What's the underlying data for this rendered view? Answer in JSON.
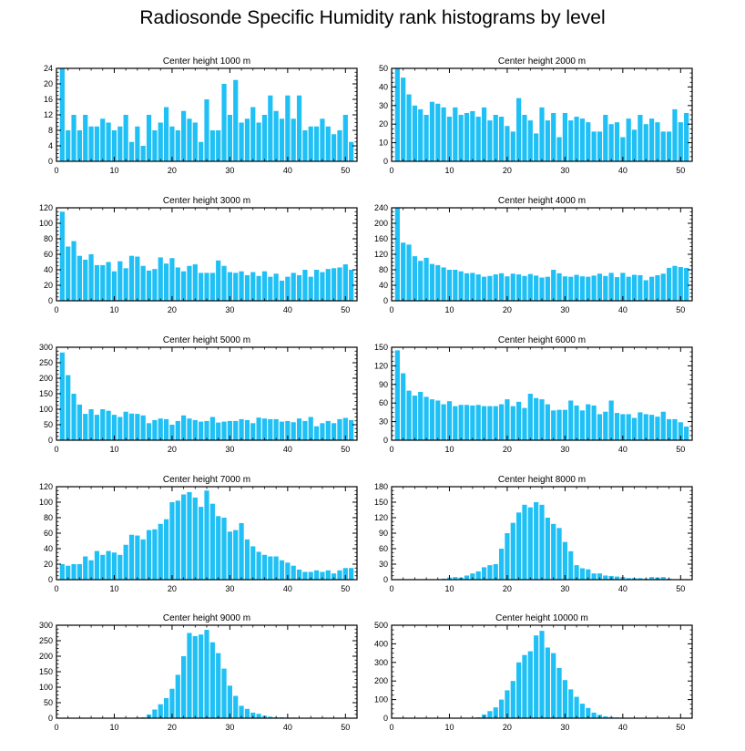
{
  "title": "Radiosonde Specific Humidity rank histograms by level",
  "colors": {
    "bar": "#1ec0f5",
    "axis": "#000000"
  },
  "chart_data": [
    {
      "type": "bar",
      "title": "Center height 1000 m",
      "xlim": [
        0,
        52
      ],
      "ylim": [
        0,
        24
      ],
      "xticks": [
        0,
        10,
        20,
        30,
        40,
        50
      ],
      "yticks": [
        0,
        4,
        8,
        12,
        16,
        20,
        24
      ],
      "x": [
        1,
        2,
        3,
        4,
        5,
        6,
        7,
        8,
        9,
        10,
        11,
        12,
        13,
        14,
        15,
        16,
        17,
        18,
        19,
        20,
        21,
        22,
        23,
        24,
        25,
        26,
        27,
        28,
        29,
        30,
        31,
        32,
        33,
        34,
        35,
        36,
        37,
        38,
        39,
        40,
        41,
        42,
        43,
        44,
        45,
        46,
        47,
        48,
        49,
        50,
        51
      ],
      "values": [
        24,
        8,
        12,
        8,
        12,
        9,
        9,
        11,
        10,
        8,
        9,
        12,
        5,
        9,
        4,
        12,
        8,
        10,
        14,
        9,
        8,
        13,
        11,
        10,
        5,
        16,
        8,
        8,
        20,
        12,
        21,
        10,
        11,
        14,
        10,
        12,
        17,
        13,
        11,
        17,
        11,
        17,
        8,
        9,
        9,
        11,
        9,
        7,
        8,
        12,
        5
      ]
    },
    {
      "type": "bar",
      "title": "Center height 2000 m",
      "xlim": [
        0,
        52
      ],
      "ylim": [
        0,
        50
      ],
      "xticks": [
        0,
        10,
        20,
        30,
        40,
        50
      ],
      "yticks": [
        0,
        10,
        20,
        30,
        40,
        50
      ],
      "x": [
        1,
        2,
        3,
        4,
        5,
        6,
        7,
        8,
        9,
        10,
        11,
        12,
        13,
        14,
        15,
        16,
        17,
        18,
        19,
        20,
        21,
        22,
        23,
        24,
        25,
        26,
        27,
        28,
        29,
        30,
        31,
        32,
        33,
        34,
        35,
        36,
        37,
        38,
        39,
        40,
        41,
        42,
        43,
        44,
        45,
        46,
        47,
        48,
        49,
        50,
        51
      ],
      "values": [
        50,
        45,
        36,
        30,
        28,
        25,
        32,
        31,
        29,
        24,
        29,
        25,
        26,
        27,
        24,
        29,
        22,
        25,
        24,
        19,
        16,
        34,
        25,
        22,
        15,
        29,
        22,
        26,
        13,
        26,
        22,
        24,
        23,
        21,
        16,
        16,
        25,
        20,
        21,
        13,
        23,
        17,
        25,
        20,
        23,
        21,
        16,
        16,
        28,
        21,
        26
      ]
    },
    {
      "type": "bar",
      "title": "Center height 3000 m",
      "xlim": [
        0,
        52
      ],
      "ylim": [
        0,
        120
      ],
      "xticks": [
        0,
        10,
        20,
        30,
        40,
        50
      ],
      "yticks": [
        0,
        20,
        40,
        60,
        80,
        100,
        120
      ],
      "x": [
        1,
        2,
        3,
        4,
        5,
        6,
        7,
        8,
        9,
        10,
        11,
        12,
        13,
        14,
        15,
        16,
        17,
        18,
        19,
        20,
        21,
        22,
        23,
        24,
        25,
        26,
        27,
        28,
        29,
        30,
        31,
        32,
        33,
        34,
        35,
        36,
        37,
        38,
        39,
        40,
        41,
        42,
        43,
        44,
        45,
        46,
        47,
        48,
        49,
        50,
        51
      ],
      "values": [
        115,
        70,
        77,
        58,
        53,
        60,
        46,
        46,
        50,
        38,
        51,
        42,
        58,
        57,
        45,
        39,
        41,
        56,
        48,
        55,
        43,
        38,
        45,
        47,
        36,
        36,
        36,
        52,
        45,
        37,
        36,
        38,
        33,
        37,
        32,
        38,
        31,
        35,
        26,
        31,
        36,
        33,
        40,
        31,
        40,
        37,
        41,
        42,
        43,
        47,
        40
      ]
    },
    {
      "type": "bar",
      "title": "Center height 4000 m",
      "xlim": [
        0,
        52
      ],
      "ylim": [
        0,
        240
      ],
      "xticks": [
        0,
        10,
        20,
        30,
        40,
        50
      ],
      "yticks": [
        0,
        40,
        80,
        120,
        160,
        200,
        240
      ],
      "x": [
        1,
        2,
        3,
        4,
        5,
        6,
        7,
        8,
        9,
        10,
        11,
        12,
        13,
        14,
        15,
        16,
        17,
        18,
        19,
        20,
        21,
        22,
        23,
        24,
        25,
        26,
        27,
        28,
        29,
        30,
        31,
        32,
        33,
        34,
        35,
        36,
        37,
        38,
        39,
        40,
        41,
        42,
        43,
        44,
        45,
        46,
        47,
        48,
        49,
        50,
        51
      ],
      "values": [
        243,
        150,
        145,
        115,
        103,
        111,
        95,
        92,
        86,
        80,
        80,
        76,
        71,
        72,
        68,
        62,
        64,
        68,
        71,
        63,
        70,
        68,
        64,
        69,
        65,
        60,
        62,
        80,
        71,
        63,
        62,
        67,
        63,
        62,
        65,
        70,
        64,
        72,
        61,
        72,
        62,
        67,
        66,
        53,
        62,
        66,
        70,
        85,
        90,
        87,
        85
      ]
    },
    {
      "type": "bar",
      "title": "Center height 5000 m",
      "xlim": [
        0,
        52
      ],
      "ylim": [
        0,
        300
      ],
      "xticks": [
        0,
        10,
        20,
        30,
        40,
        50
      ],
      "yticks": [
        0,
        50,
        100,
        150,
        200,
        250,
        300
      ],
      "x": [
        1,
        2,
        3,
        4,
        5,
        6,
        7,
        8,
        9,
        10,
        11,
        12,
        13,
        14,
        15,
        16,
        17,
        18,
        19,
        20,
        21,
        22,
        23,
        24,
        25,
        26,
        27,
        28,
        29,
        30,
        31,
        32,
        33,
        34,
        35,
        36,
        37,
        38,
        39,
        40,
        41,
        42,
        43,
        44,
        45,
        46,
        47,
        48,
        49,
        50,
        51
      ],
      "values": [
        283,
        210,
        150,
        115,
        85,
        100,
        82,
        100,
        95,
        82,
        75,
        92,
        86,
        85,
        80,
        55,
        65,
        70,
        68,
        50,
        62,
        80,
        70,
        65,
        60,
        62,
        75,
        57,
        60,
        62,
        62,
        68,
        65,
        55,
        73,
        70,
        68,
        68,
        60,
        62,
        58,
        70,
        62,
        75,
        45,
        55,
        62,
        55,
        68,
        72,
        65
      ]
    },
    {
      "type": "bar",
      "title": "Center height 6000 m",
      "xlim": [
        0,
        52
      ],
      "ylim": [
        0,
        150
      ],
      "xticks": [
        0,
        10,
        20,
        30,
        40,
        50
      ],
      "yticks": [
        0,
        30,
        60,
        90,
        120,
        150
      ],
      "x": [
        1,
        2,
        3,
        4,
        5,
        6,
        7,
        8,
        9,
        10,
        11,
        12,
        13,
        14,
        15,
        16,
        17,
        18,
        19,
        20,
        21,
        22,
        23,
        24,
        25,
        26,
        27,
        28,
        29,
        30,
        31,
        32,
        33,
        34,
        35,
        36,
        37,
        38,
        39,
        40,
        41,
        42,
        43,
        44,
        45,
        46,
        47,
        48,
        49,
        50,
        51
      ],
      "values": [
        145,
        108,
        80,
        72,
        78,
        70,
        66,
        64,
        58,
        63,
        55,
        57,
        57,
        56,
        57,
        55,
        55,
        55,
        58,
        66,
        55,
        62,
        52,
        75,
        68,
        66,
        58,
        48,
        49,
        49,
        64,
        56,
        48,
        58,
        56,
        42,
        46,
        64,
        44,
        42,
        42,
        36,
        45,
        42,
        41,
        38,
        46,
        34,
        34,
        29,
        22
      ]
    },
    {
      "type": "bar",
      "title": "Center height 7000 m",
      "xlim": [
        0,
        52
      ],
      "ylim": [
        0,
        120
      ],
      "xticks": [
        0,
        10,
        20,
        30,
        40,
        50
      ],
      "yticks": [
        0,
        20,
        40,
        60,
        80,
        100,
        120
      ],
      "x": [
        1,
        2,
        3,
        4,
        5,
        6,
        7,
        8,
        9,
        10,
        11,
        12,
        13,
        14,
        15,
        16,
        17,
        18,
        19,
        20,
        21,
        22,
        23,
        24,
        25,
        26,
        27,
        28,
        29,
        30,
        31,
        32,
        33,
        34,
        35,
        36,
        37,
        38,
        39,
        40,
        41,
        42,
        43,
        44,
        45,
        46,
        47,
        48,
        49,
        50,
        51
      ],
      "values": [
        20,
        18,
        20,
        20,
        30,
        25,
        37,
        32,
        37,
        35,
        32,
        45,
        58,
        57,
        52,
        64,
        65,
        72,
        78,
        100,
        102,
        110,
        113,
        106,
        94,
        115,
        98,
        82,
        80,
        62,
        64,
        73,
        52,
        43,
        36,
        32,
        30,
        30,
        25,
        22,
        18,
        13,
        10,
        10,
        12,
        10,
        12,
        8,
        12,
        15,
        15
      ]
    },
    {
      "type": "bar",
      "title": "Center height 8000 m",
      "xlim": [
        0,
        52
      ],
      "ylim": [
        0,
        180
      ],
      "xticks": [
        0,
        10,
        20,
        30,
        40,
        50
      ],
      "yticks": [
        0,
        30,
        60,
        90,
        120,
        150,
        180
      ],
      "x": [
        1,
        2,
        3,
        4,
        5,
        6,
        7,
        8,
        9,
        10,
        11,
        12,
        13,
        14,
        15,
        16,
        17,
        18,
        19,
        20,
        21,
        22,
        23,
        24,
        25,
        26,
        27,
        28,
        29,
        30,
        31,
        32,
        33,
        34,
        35,
        36,
        37,
        38,
        39,
        40,
        41,
        42,
        43,
        44,
        45,
        46,
        47,
        48,
        49,
        50,
        51
      ],
      "values": [
        1,
        1,
        1,
        1,
        1,
        1,
        1,
        1,
        2,
        4,
        5,
        4,
        8,
        12,
        16,
        24,
        28,
        30,
        60,
        90,
        110,
        130,
        145,
        140,
        150,
        145,
        120,
        108,
        100,
        73,
        55,
        28,
        22,
        20,
        12,
        12,
        8,
        7,
        6,
        5,
        3,
        3,
        3,
        2,
        5,
        4,
        5,
        2,
        1,
        1,
        1
      ]
    },
    {
      "type": "bar",
      "title": "Center height 9000 m",
      "xlim": [
        0,
        52
      ],
      "ylim": [
        0,
        300
      ],
      "xticks": [
        0,
        10,
        20,
        30,
        40,
        50
      ],
      "yticks": [
        0,
        50,
        100,
        150,
        200,
        250,
        300
      ],
      "x": [
        1,
        2,
        3,
        4,
        5,
        6,
        7,
        8,
        9,
        10,
        11,
        12,
        13,
        14,
        15,
        16,
        17,
        18,
        19,
        20,
        21,
        22,
        23,
        24,
        25,
        26,
        27,
        28,
        29,
        30,
        31,
        32,
        33,
        34,
        35,
        36,
        37,
        38,
        39,
        40,
        41,
        42,
        43,
        44,
        45,
        46,
        47,
        48,
        49,
        50,
        51
      ],
      "values": [
        0,
        0,
        0,
        0,
        0,
        0,
        0,
        0,
        0,
        0,
        0,
        1,
        1,
        2,
        3,
        12,
        28,
        45,
        65,
        95,
        140,
        200,
        275,
        265,
        270,
        285,
        245,
        210,
        160,
        105,
        72,
        40,
        30,
        18,
        14,
        8,
        5,
        3,
        3,
        2,
        2,
        1,
        1,
        1,
        1,
        0,
        0,
        0,
        0,
        0,
        0
      ]
    },
    {
      "type": "bar",
      "title": "Center height 10000 m",
      "xlim": [
        0,
        52
      ],
      "ylim": [
        0,
        500
      ],
      "xticks": [
        0,
        10,
        20,
        30,
        40,
        50
      ],
      "yticks": [
        0,
        100,
        200,
        300,
        400,
        500
      ],
      "x": [
        1,
        2,
        3,
        4,
        5,
        6,
        7,
        8,
        9,
        10,
        11,
        12,
        13,
        14,
        15,
        16,
        17,
        18,
        19,
        20,
        21,
        22,
        23,
        24,
        25,
        26,
        27,
        28,
        29,
        30,
        31,
        32,
        33,
        34,
        35,
        36,
        37,
        38,
        39,
        40,
        41,
        42,
        43,
        44,
        45,
        46,
        47,
        48,
        49,
        50,
        51
      ],
      "values": [
        0,
        0,
        0,
        0,
        0,
        0,
        0,
        0,
        0,
        0,
        0,
        1,
        1,
        2,
        5,
        20,
        38,
        58,
        100,
        150,
        200,
        300,
        340,
        360,
        445,
        470,
        380,
        350,
        270,
        205,
        155,
        115,
        78,
        55,
        30,
        18,
        10,
        6,
        4,
        3,
        2,
        2,
        1,
        1,
        1,
        1,
        0,
        0,
        0,
        0,
        0
      ]
    }
  ]
}
